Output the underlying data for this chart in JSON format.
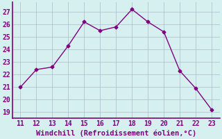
{
  "x": [
    11,
    12,
    13,
    14,
    15,
    16,
    17,
    18,
    19,
    20,
    21,
    22,
    23
  ],
  "y": [
    21.0,
    22.4,
    22.6,
    24.3,
    26.2,
    25.5,
    25.8,
    27.2,
    26.2,
    25.4,
    22.3,
    20.9,
    19.2
  ],
  "line_color": "#800080",
  "marker": "D",
  "marker_size": 2.5,
  "bg_color": "#d5f0ee",
  "plot_bg": "#d5f0ee",
  "grid_color": "#aabbcc",
  "xlabel": "Windchill (Refroidissement éolien,°C)",
  "xlim": [
    10.5,
    23.5
  ],
  "ylim": [
    18.5,
    27.75
  ],
  "yticks": [
    19,
    20,
    21,
    22,
    23,
    24,
    25,
    26,
    27
  ],
  "xticks": [
    11,
    12,
    13,
    14,
    15,
    16,
    17,
    18,
    19,
    20,
    21,
    22,
    23
  ],
  "xlabel_color": "#800080",
  "tick_color": "#800080",
  "xlabel_fontsize": 7.5,
  "tick_fontsize": 7,
  "line_width": 1.0,
  "spine_color": "#800080"
}
